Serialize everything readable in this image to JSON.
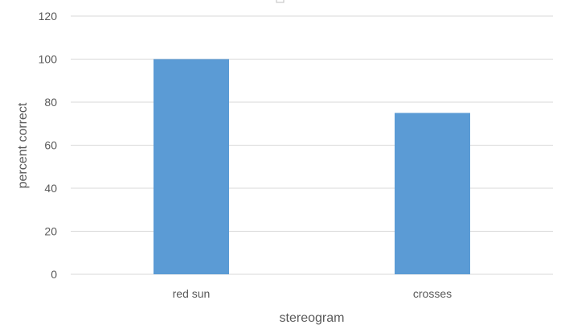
{
  "chart_data": {
    "type": "bar",
    "categories": [
      "red sun",
      "crosses"
    ],
    "values": [
      100,
      75
    ],
    "xlabel": "stereogram",
    "ylabel": "percent correct",
    "ylim": [
      0,
      120
    ],
    "yticks": [
      0,
      20,
      40,
      60,
      80,
      100,
      120
    ],
    "grid": true,
    "bar_color": "#5b9bd5",
    "grid_color": "#d9d9d9"
  }
}
